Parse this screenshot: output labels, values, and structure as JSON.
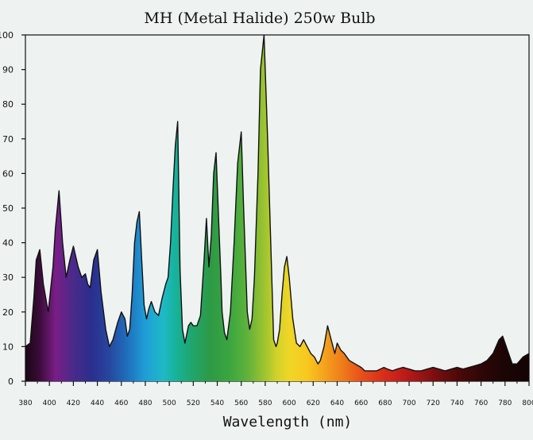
{
  "colors": {
    "background": "#eef3f1",
    "stroke": "#111111"
  },
  "chart_data": {
    "type": "area",
    "title": "MH (Metal Halide) 250w Bulb",
    "xlabel": "Wavelength (nm)",
    "ylabel": "",
    "xlim": [
      380,
      800
    ],
    "ylim": [
      0,
      100
    ],
    "grid": false,
    "legend": "none",
    "fill": "visible-spectrum gradient by wavelength",
    "x_ticks": [
      380,
      400,
      420,
      440,
      460,
      480,
      500,
      520,
      540,
      560,
      580,
      600,
      620,
      640,
      660,
      680,
      700,
      720,
      740,
      760,
      780,
      800
    ],
    "y_ticks": [
      0,
      10,
      20,
      30,
      40,
      50,
      60,
      70,
      80,
      90,
      100
    ],
    "x": [
      380,
      384,
      387,
      389,
      392,
      395,
      399,
      403,
      405,
      408,
      411,
      414,
      417,
      420,
      424,
      427,
      430,
      432,
      434,
      437,
      440,
      443,
      447,
      450,
      453,
      457,
      460,
      463,
      465,
      467,
      469,
      471,
      473,
      475,
      477,
      479,
      481,
      483,
      485,
      488,
      491,
      494,
      497,
      499,
      501,
      503,
      505,
      507,
      509,
      511,
      513,
      516,
      518,
      520,
      523,
      526,
      529,
      531,
      533,
      535,
      537,
      539,
      541,
      543,
      544,
      546,
      548,
      551,
      554,
      557,
      560,
      562,
      565,
      567,
      569,
      571,
      574,
      576,
      579,
      582,
      585,
      587,
      589,
      590,
      592,
      594,
      596,
      598,
      600,
      603,
      606,
      609,
      612,
      615,
      618,
      621,
      624,
      626,
      629,
      632,
      635,
      638,
      640,
      643,
      646,
      650,
      655,
      660,
      663,
      665,
      667,
      669,
      671,
      673,
      676,
      679,
      682,
      686,
      690,
      695,
      700,
      705,
      710,
      715,
      720,
      725,
      730,
      735,
      740,
      745,
      750,
      755,
      760,
      765,
      770,
      775,
      778,
      780,
      783,
      786,
      790,
      795,
      800
    ],
    "y": [
      10,
      11,
      24,
      35,
      38,
      28,
      20,
      33,
      44,
      55,
      40,
      30,
      35,
      39,
      33,
      30,
      31,
      28,
      27,
      35,
      38,
      26,
      15,
      10,
      12,
      17,
      20,
      18,
      13,
      15,
      25,
      40,
      46,
      49,
      35,
      22,
      18,
      21,
      23,
      20,
      19,
      24,
      28,
      30,
      40,
      55,
      68,
      75,
      32,
      15,
      11,
      16,
      17,
      16,
      16,
      19,
      35,
      47,
      33,
      42,
      60,
      66,
      48,
      30,
      20,
      14,
      12,
      20,
      40,
      63,
      72,
      50,
      20,
      15,
      18,
      30,
      60,
      90,
      100,
      70,
      35,
      12,
      10,
      11,
      15,
      25,
      33,
      36,
      30,
      18,
      11,
      10,
      12,
      10,
      8,
      7,
      5,
      6,
      10,
      16,
      12,
      8,
      11,
      9,
      8,
      6,
      5,
      4,
      3,
      3,
      3,
      3,
      3,
      3,
      3.5,
      4,
      3.5,
      3,
      3.5,
      4,
      3.5,
      3,
      3,
      3.5,
      4,
      3.5,
      3,
      3.5,
      4,
      3.5,
      4,
      4.5,
      5,
      6,
      8,
      12,
      13,
      11,
      8,
      5,
      5,
      7,
      8
    ]
  }
}
